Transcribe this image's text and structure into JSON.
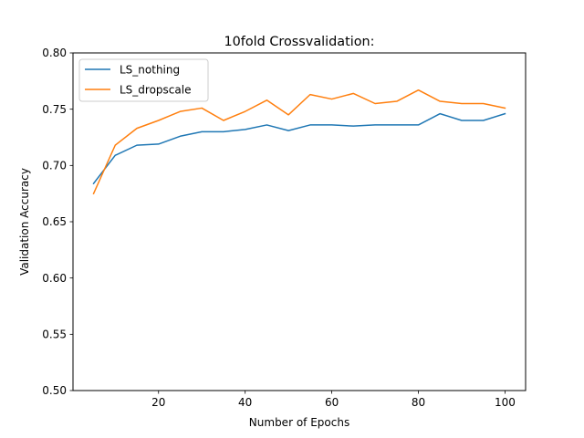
{
  "chart_data": {
    "type": "line",
    "title": "10fold Crossvalidation:",
    "xlabel": "Number of Epochs",
    "ylabel": "Validation Accuracy",
    "xlim": [
      0.25,
      104.75
    ],
    "ylim": [
      0.5,
      0.8
    ],
    "xticks": [
      20,
      40,
      60,
      80,
      100
    ],
    "xtick_labels": [
      "20",
      "40",
      "60",
      "80",
      "100"
    ],
    "yticks": [
      0.5,
      0.55,
      0.6,
      0.65,
      0.7,
      0.75,
      0.8
    ],
    "ytick_labels": [
      "0.50",
      "0.55",
      "0.60",
      "0.65",
      "0.70",
      "0.75",
      "0.80"
    ],
    "grid": false,
    "legend_position": "upper-left",
    "x": [
      5,
      10,
      15,
      20,
      25,
      30,
      35,
      40,
      45,
      50,
      55,
      60,
      65,
      70,
      75,
      80,
      85,
      90,
      95,
      100
    ],
    "series": [
      {
        "name": "LS_nothing",
        "color": "#1f77b4",
        "values": [
          0.684,
          0.709,
          0.718,
          0.719,
          0.726,
          0.73,
          0.73,
          0.732,
          0.736,
          0.731,
          0.736,
          0.736,
          0.735,
          0.736,
          0.736,
          0.736,
          0.746,
          0.74,
          0.74,
          0.746
        ]
      },
      {
        "name": "LS_dropscale",
        "color": "#ff7f0e",
        "values": [
          0.675,
          0.718,
          0.733,
          0.74,
          0.748,
          0.751,
          0.74,
          0.748,
          0.758,
          0.745,
          0.763,
          0.759,
          0.764,
          0.755,
          0.757,
          0.767,
          0.757,
          0.755,
          0.755,
          0.751
        ]
      }
    ]
  }
}
